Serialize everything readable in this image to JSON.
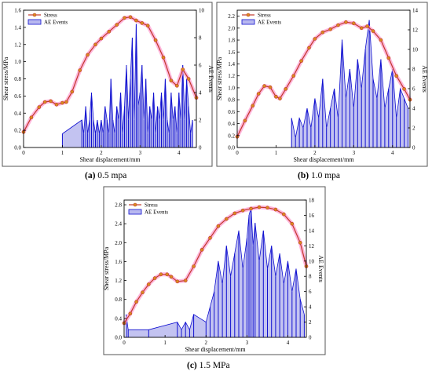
{
  "captions": [
    {
      "letter": "(a)",
      "text": " 0.5 mpa"
    },
    {
      "letter": "(b)",
      "text": " 1.0 mpa"
    },
    {
      "letter": "(c)",
      "text": " 1.5 MPa"
    }
  ],
  "colors": {
    "stress_line": "#c0392b",
    "stress_marker": "#d98c1f",
    "stress_glow": "#ff9fd0",
    "ae_line": "#1010d0",
    "ae_fill": "#b8b8ef",
    "frame": "#555555"
  },
  "chart_data": [
    {
      "type": "line+area",
      "xlabel": "Shear displacement/mm",
      "ylabel_left": "Shear stress/MPa",
      "ylabel_right": "AE Events",
      "xlim": [
        0,
        4.45
      ],
      "ylim_left": [
        0,
        1.6
      ],
      "ylim_right": [
        0,
        10
      ],
      "xticks": [
        0,
        1,
        2,
        3,
        4
      ],
      "yticks_left": [
        0,
        0.2,
        0.4,
        0.6,
        0.8,
        1.0,
        1.2,
        1.4,
        1.6
      ],
      "yticks_right": [
        0,
        2,
        4,
        6,
        8,
        10
      ],
      "legend": {
        "position": "top-left",
        "entries": [
          "Stress",
          "AE Events"
        ]
      },
      "stress": {
        "name": "Stress",
        "x": [
          0,
          0.2,
          0.4,
          0.55,
          0.7,
          0.85,
          1.0,
          1.1,
          1.25,
          1.45,
          1.65,
          1.85,
          2.0,
          2.2,
          2.4,
          2.6,
          2.75,
          2.9,
          3.05,
          3.2,
          3.4,
          3.6,
          3.8,
          3.95,
          4.1,
          4.25,
          4.45
        ],
        "y": [
          0.18,
          0.35,
          0.47,
          0.53,
          0.54,
          0.5,
          0.52,
          0.53,
          0.65,
          0.9,
          1.08,
          1.2,
          1.27,
          1.35,
          1.43,
          1.51,
          1.52,
          1.48,
          1.45,
          1.42,
          1.25,
          1.05,
          0.78,
          0.72,
          0.91,
          0.8,
          0.58
        ]
      },
      "ae": {
        "name": "AE Events",
        "x": [
          1.0,
          1.5,
          1.55,
          1.6,
          1.65,
          1.7,
          1.75,
          1.8,
          1.85,
          1.9,
          1.95,
          2.0,
          2.05,
          2.1,
          2.15,
          2.2,
          2.25,
          2.3,
          2.35,
          2.4,
          2.45,
          2.5,
          2.55,
          2.6,
          2.65,
          2.7,
          2.75,
          2.8,
          2.85,
          2.9,
          2.95,
          3.0,
          3.05,
          3.1,
          3.15,
          3.2,
          3.25,
          3.3,
          3.35,
          3.4,
          3.45,
          3.5,
          3.55,
          3.6,
          3.65,
          3.7,
          3.75,
          3.8,
          3.85,
          3.9,
          3.95,
          4.0,
          4.05,
          4.1,
          4.15,
          4.2,
          4.25,
          4.3,
          4.35
        ],
        "y": [
          1,
          2,
          1,
          3,
          1,
          2,
          4,
          2,
          1,
          2,
          1,
          2,
          1,
          3,
          2,
          1,
          5,
          2,
          1,
          3,
          2,
          4,
          1,
          3,
          6,
          2,
          5,
          8,
          2,
          9,
          3,
          4,
          6,
          2,
          5,
          1,
          3,
          2,
          4,
          1,
          3,
          2,
          4,
          2,
          5,
          2,
          1,
          4,
          2,
          3,
          1,
          4,
          2,
          6,
          2,
          5,
          3,
          1,
          2
        ]
      }
    },
    {
      "type": "line+area",
      "xlabel": "Shear displacement/mm",
      "ylabel_left": "Shear stress/MPa",
      "ylabel_right": "AE Events",
      "xlim": [
        0,
        4.45
      ],
      "ylim_left": [
        0,
        2.3
      ],
      "ylim_right": [
        0,
        14
      ],
      "xticks": [
        0,
        1,
        2,
        3,
        4
      ],
      "yticks_left": [
        0,
        0.2,
        0.4,
        0.6,
        0.8,
        1.0,
        1.2,
        1.4,
        1.6,
        1.8,
        2.0,
        2.2
      ],
      "yticks_right": [
        0,
        2,
        4,
        6,
        8,
        10,
        12,
        14
      ],
      "legend": {
        "position": "top-left",
        "entries": [
          "Stress",
          "AE Events"
        ]
      },
      "stress": {
        "name": "Stress",
        "x": [
          0,
          0.2,
          0.4,
          0.55,
          0.7,
          0.85,
          1.0,
          1.1,
          1.25,
          1.45,
          1.65,
          1.85,
          2.0,
          2.2,
          2.4,
          2.6,
          2.8,
          3.0,
          3.2,
          3.35,
          3.5,
          3.7,
          3.9,
          4.1,
          4.3,
          4.45
        ],
        "y": [
          0.18,
          0.45,
          0.7,
          0.9,
          1.03,
          1.01,
          0.85,
          0.82,
          0.98,
          1.2,
          1.45,
          1.67,
          1.82,
          1.93,
          1.98,
          2.05,
          2.1,
          2.08,
          2.0,
          2.03,
          1.95,
          1.8,
          1.5,
          1.2,
          0.98,
          0.8
        ]
      },
      "ae": {
        "name": "AE Events",
        "x": [
          1.4,
          1.5,
          1.6,
          1.7,
          1.8,
          1.9,
          2.0,
          2.1,
          2.2,
          2.3,
          2.4,
          2.5,
          2.6,
          2.7,
          2.8,
          2.9,
          3.0,
          3.1,
          3.2,
          3.3,
          3.4,
          3.5,
          3.6,
          3.7,
          3.8,
          3.9,
          4.0,
          4.1,
          4.2,
          4.3,
          4.4
        ],
        "y": [
          3,
          1,
          3,
          2,
          4,
          2,
          5,
          3,
          7,
          2,
          4,
          6,
          3,
          11,
          5,
          8,
          4,
          9,
          6,
          10,
          13,
          7,
          5,
          9,
          4,
          6,
          8,
          3,
          6,
          5,
          4
        ]
      }
    },
    {
      "type": "line+area",
      "xlabel": "Shear displacement/mm",
      "ylabel_left": "Shear stress/MPa",
      "ylabel_right": "AE Events",
      "xlim": [
        0,
        4.45
      ],
      "ylim_left": [
        0,
        2.9
      ],
      "ylim_right": [
        0,
        18
      ],
      "xticks": [
        0,
        1,
        2,
        3,
        4
      ],
      "yticks_left": [
        0,
        0.4,
        0.8,
        1.2,
        1.6,
        2.0,
        2.4,
        2.8
      ],
      "yticks_right": [
        0,
        2,
        4,
        6,
        8,
        10,
        12,
        14,
        16,
        18
      ],
      "legend": {
        "position": "top-left",
        "entries": [
          "Stress",
          "AE Events"
        ]
      },
      "stress": {
        "name": "Stress",
        "x": [
          0,
          0.15,
          0.3,
          0.45,
          0.6,
          0.75,
          0.9,
          1.05,
          1.15,
          1.3,
          1.5,
          1.7,
          1.9,
          2.1,
          2.3,
          2.5,
          2.7,
          2.9,
          3.1,
          3.3,
          3.5,
          3.7,
          3.9,
          4.1,
          4.3,
          4.45
        ],
        "y": [
          0.3,
          0.5,
          0.75,
          0.95,
          1.12,
          1.25,
          1.33,
          1.33,
          1.28,
          1.18,
          1.2,
          1.5,
          1.85,
          2.1,
          2.35,
          2.5,
          2.62,
          2.68,
          2.72,
          2.75,
          2.74,
          2.7,
          2.6,
          2.4,
          2.0,
          1.5
        ]
      },
      "ae": {
        "name": "AE Events",
        "x": [
          0.05,
          0.1,
          0.6,
          1.3,
          1.4,
          1.5,
          1.6,
          1.7,
          2.0,
          2.1,
          2.2,
          2.3,
          2.4,
          2.5,
          2.6,
          2.7,
          2.8,
          2.9,
          3.0,
          3.05,
          3.1,
          3.15,
          3.2,
          3.3,
          3.4,
          3.5,
          3.6,
          3.7,
          3.8,
          3.9,
          4.0,
          4.1,
          4.2,
          4.3,
          4.4
        ],
        "y": [
          3,
          1,
          1,
          2,
          1,
          2,
          1,
          3,
          2,
          4,
          6,
          10,
          7,
          12,
          8,
          11,
          14,
          9,
          13,
          16,
          17,
          12,
          15,
          10,
          14,
          9,
          12,
          8,
          11,
          7,
          10,
          6,
          9,
          5,
          3
        ]
      }
    }
  ]
}
